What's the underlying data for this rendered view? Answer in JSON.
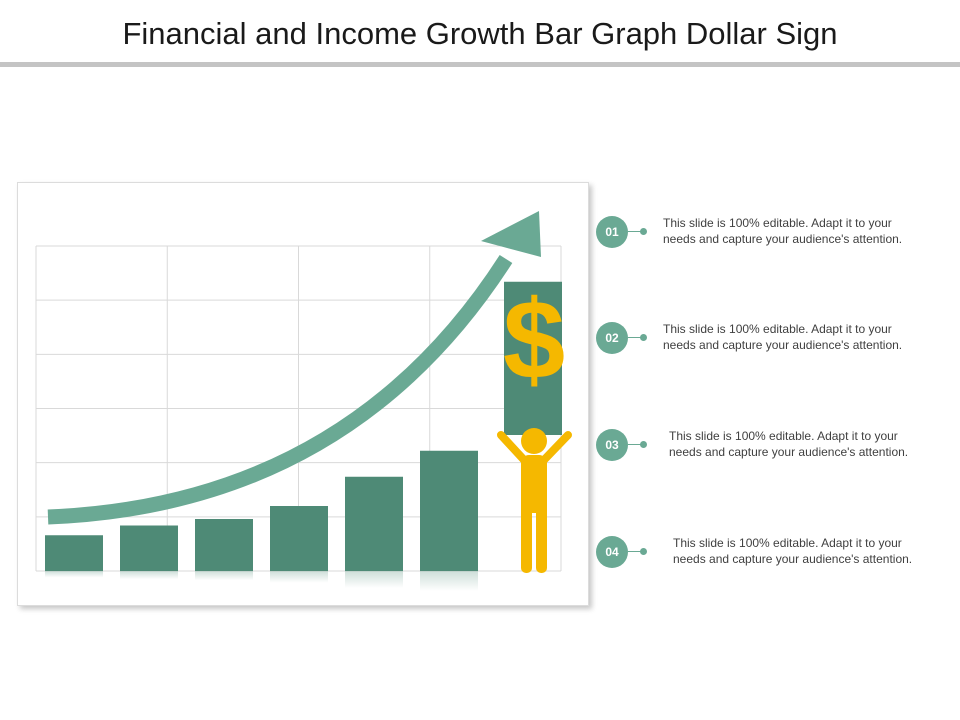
{
  "slide": {
    "title": "Financial and Income Growth Bar Graph Dollar Sign"
  },
  "graphic": {
    "dollar_symbol": "$",
    "bar_levels": [
      0.11,
      0.14,
      0.16,
      0.2,
      0.29,
      0.37
    ],
    "held_bar_level": 0.89,
    "colors": {
      "bar": "#4e8a76",
      "arrow": "#6aa994",
      "accent": "#f5b800",
      "grid": "#d9d9d9"
    }
  },
  "steps": [
    {
      "number": "01",
      "line1": "This slide is 100% editable. Adapt it to your",
      "line2": "needs and capture your audience's attention."
    },
    {
      "number": "02",
      "line1": "This slide is 100% editable. Adapt it to your",
      "line2": "needs and capture your audience's attention."
    },
    {
      "number": "03",
      "line1": "This slide is 100% editable. Adapt it to your",
      "line2": "needs and capture your audience's attention."
    },
    {
      "number": "04",
      "line1": "This slide is 100% editable. Adapt it to your",
      "line2": "needs and capture your audience's attention."
    }
  ]
}
